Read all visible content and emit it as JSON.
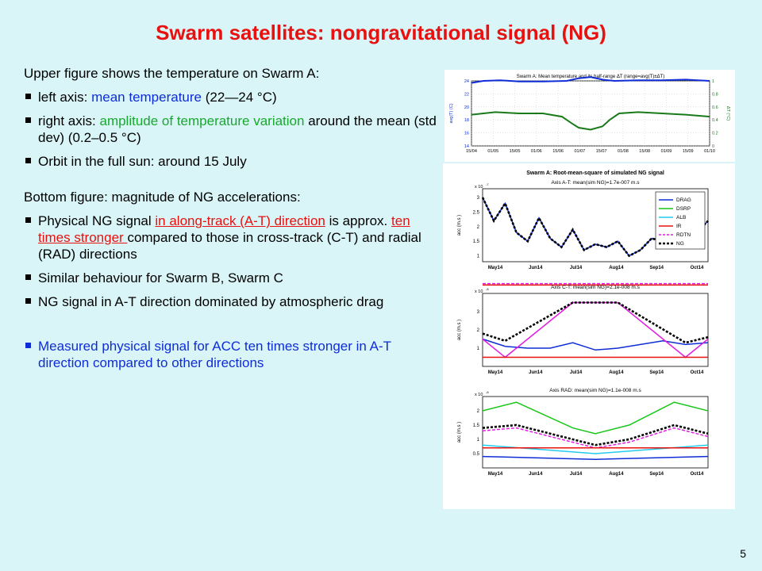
{
  "title": "Swarm satellites: nongravitational signal (NG)",
  "intro": "Upper figure shows the temperature on Swarm A:",
  "upper_bullets": [
    {
      "pre": "left axis: ",
      "hl": "mean temperature",
      "post": " (22—24 °C)"
    },
    {
      "pre": "right axis: ",
      "hl": "amplitude of temperature variation",
      "post": " around the mean (std dev) (0.2–0.5 °C)"
    },
    {
      "pre": "Orbit in the full sun: around 15 July",
      "hl": "",
      "post": ""
    }
  ],
  "bottom_intro": "Bottom figure: magnitude of NG accelerations:",
  "bottom_bullets": [
    {
      "pre": "Physical NG signal ",
      "hl": "in along-track (A-T) direction",
      "mid": " is approx. ",
      "hl2": "ten times stronger ",
      "post": "compared to those in cross-track (C-T) and radial (RAD) directions"
    },
    {
      "text": "Similar behaviour for Swarm B, Swarm C"
    },
    {
      "text": "NG signal in A-T direction dominated by atmospheric drag"
    }
  ],
  "conclusion": "Measured physical signal for ACC ten times stronger in A-T direction compared to other directions",
  "slide_number": "5",
  "colors": {
    "background": "#d9f5f8",
    "title": "#e8110f",
    "blue": "#0f2dd6",
    "green": "#19a82e"
  },
  "chart_data": [
    {
      "type": "line",
      "title": "Swarm A: Mean temperature and its half-range ΔT (range=avg(T)±ΔT)",
      "ylabel_left": "avg(T) (C)",
      "ylabel_right": "ΔT (°C)",
      "y_ticks_left": [
        "24",
        "22",
        "20",
        "18",
        "16",
        "14"
      ],
      "y_ticks_right": [
        "1",
        "0.8",
        "0.6",
        "0.4",
        "0.2",
        "0"
      ],
      "x_ticks": [
        "15/04",
        "01/05",
        "15/05",
        "01/06",
        "15/06",
        "01/07",
        "15/07",
        "01/08",
        "15/08",
        "01/09",
        "15/09",
        "01/10"
      ],
      "series": [
        {
          "color": "#0f2dd6",
          "axis": "left",
          "x": [
            0,
            0.05,
            0.12,
            0.2,
            0.3,
            0.4,
            0.45,
            0.5,
            0.55,
            0.6,
            0.7,
            0.8,
            0.9,
            0.95,
            1.0
          ],
          "values": [
            23.7,
            24.0,
            24.1,
            23.9,
            23.9,
            24.0,
            24.4,
            24.6,
            24.2,
            24.0,
            24.1,
            24.1,
            24.2,
            24.1,
            24.0
          ]
        },
        {
          "color": "#1a7a1a",
          "axis": "right",
          "x": [
            0,
            0.1,
            0.2,
            0.3,
            0.38,
            0.42,
            0.45,
            0.5,
            0.55,
            0.58,
            0.62,
            0.7,
            0.8,
            0.9,
            1.0
          ],
          "values": [
            0.48,
            0.52,
            0.5,
            0.5,
            0.45,
            0.35,
            0.28,
            0.25,
            0.3,
            0.4,
            0.5,
            0.52,
            0.5,
            0.48,
            0.45
          ]
        }
      ]
    },
    {
      "type": "line",
      "title": "Swarm A: Root-mean-square of simulated NG signal",
      "subtitle": "Axis A-T: mean(sim NG)=1.7e-007 m.s",
      "ylabel": "acc (m.s )",
      "exponent": "x 10",
      "exponent_power": "-7",
      "y_ticks": [
        "3",
        "2.5",
        "2",
        "1.5",
        "1"
      ],
      "x_ticks": [
        "May14",
        "Jun14",
        "Jul14",
        "Aug14",
        "Sep14",
        "Oct14"
      ],
      "legend": [
        "DRAG",
        "DSRP",
        "ALB",
        "IR",
        "RDTN",
        "NG"
      ],
      "series": [
        {
          "name": "DRAG",
          "color": "#0f2dd6",
          "x": [
            0,
            0.05,
            0.1,
            0.15,
            0.2,
            0.25,
            0.3,
            0.35,
            0.4,
            0.45,
            0.5,
            0.55,
            0.6,
            0.65,
            0.7,
            0.75,
            0.8,
            0.85,
            0.9,
            0.95,
            1.0
          ],
          "values": [
            3.0,
            2.2,
            2.8,
            1.8,
            1.5,
            2.3,
            1.6,
            1.3,
            1.9,
            1.2,
            1.4,
            1.3,
            1.5,
            1.0,
            1.2,
            1.6,
            1.5,
            1.8,
            2.1,
            1.8,
            2.2
          ]
        },
        {
          "name": "NG",
          "color": "#000000",
          "x": [
            0,
            0.05,
            0.1,
            0.15,
            0.2,
            0.25,
            0.3,
            0.35,
            0.4,
            0.45,
            0.5,
            0.55,
            0.6,
            0.65,
            0.7,
            0.75,
            0.8,
            0.85,
            0.9,
            0.95,
            1.0
          ],
          "values": [
            3.0,
            2.2,
            2.8,
            1.8,
            1.5,
            2.3,
            1.6,
            1.3,
            1.9,
            1.2,
            1.4,
            1.3,
            1.5,
            1.0,
            1.2,
            1.6,
            1.5,
            1.8,
            2.1,
            1.8,
            2.2
          ]
        },
        {
          "name": "RDTN",
          "color": "#e01ee0",
          "x": [
            0,
            1
          ],
          "values": [
            0.05,
            0.05
          ]
        },
        {
          "name": "IR",
          "color": "#e8110f",
          "x": [
            0,
            1
          ],
          "values": [
            0.0,
            0.0
          ]
        }
      ]
    },
    {
      "type": "line",
      "subtitle": "Axis C-T: mean(sim NG)=2.1e-008 m.s",
      "ylabel": "acc (m.s )",
      "exponent": "x 10",
      "exponent_power": "-8",
      "y_ticks": [
        "3",
        "2",
        "1"
      ],
      "x_ticks": [
        "May14",
        "Jun14",
        "Jul14",
        "Aug14",
        "Sep14",
        "Oct14"
      ],
      "series": [
        {
          "name": "DRAG",
          "color": "#0f2dd6",
          "x": [
            0,
            0.1,
            0.2,
            0.3,
            0.4,
            0.5,
            0.6,
            0.7,
            0.8,
            0.9,
            1.0
          ],
          "values": [
            1.5,
            1.1,
            1.0,
            1.0,
            1.3,
            0.9,
            1.0,
            1.2,
            1.4,
            1.2,
            1.3
          ]
        },
        {
          "name": "DSRP",
          "color": "#e01ee0",
          "x": [
            0,
            0.1,
            0.4,
            0.6,
            0.9,
            1.0
          ],
          "values": [
            1.5,
            0.5,
            3.5,
            3.5,
            0.5,
            1.5
          ]
        },
        {
          "name": "NG",
          "color": "#000000",
          "x": [
            0,
            0.1,
            0.4,
            0.6,
            0.9,
            1.0
          ],
          "values": [
            1.8,
            1.4,
            3.5,
            3.5,
            1.3,
            1.6
          ]
        },
        {
          "name": "IR",
          "color": "#e8110f",
          "x": [
            0,
            1
          ],
          "values": [
            0.5,
            0.5
          ]
        }
      ]
    },
    {
      "type": "line",
      "subtitle": "Axis RAD: mean(sim NG)=1.1e-008 m.s",
      "ylabel": "acc (m.s )",
      "exponent": "x 10",
      "exponent_power": "-8",
      "y_ticks": [
        "2",
        "1.5",
        "1",
        "0.5"
      ],
      "x_ticks": [
        "May14",
        "Jun14",
        "Jul14",
        "Aug14",
        "Sep14",
        "Oct14"
      ],
      "series": [
        {
          "name": "DSRP",
          "color": "#19c619",
          "x": [
            0,
            0.15,
            0.4,
            0.5,
            0.65,
            0.85,
            1.0
          ],
          "values": [
            2.0,
            2.3,
            1.4,
            1.2,
            1.5,
            2.3,
            2.0
          ]
        },
        {
          "name": "NG",
          "color": "#000000",
          "x": [
            0,
            0.15,
            0.4,
            0.5,
            0.65,
            0.85,
            1.0
          ],
          "values": [
            1.4,
            1.5,
            1.0,
            0.8,
            1.0,
            1.5,
            1.2
          ]
        },
        {
          "name": "RDTN",
          "color": "#e01ee0",
          "x": [
            0,
            0.15,
            0.4,
            0.5,
            0.65,
            0.85,
            1.0
          ],
          "values": [
            1.3,
            1.4,
            0.9,
            0.7,
            0.9,
            1.4,
            1.1
          ]
        },
        {
          "name": "ALB",
          "color": "#22ccee",
          "x": [
            0,
            0.5,
            1.0
          ],
          "values": [
            0.8,
            0.5,
            0.8
          ]
        },
        {
          "name": "IR",
          "color": "#e8110f",
          "x": [
            0,
            1
          ],
          "values": [
            0.7,
            0.7
          ]
        },
        {
          "name": "DRAG",
          "color": "#0f2dd6",
          "x": [
            0,
            0.5,
            1.0
          ],
          "values": [
            0.4,
            0.3,
            0.4
          ]
        }
      ]
    }
  ]
}
